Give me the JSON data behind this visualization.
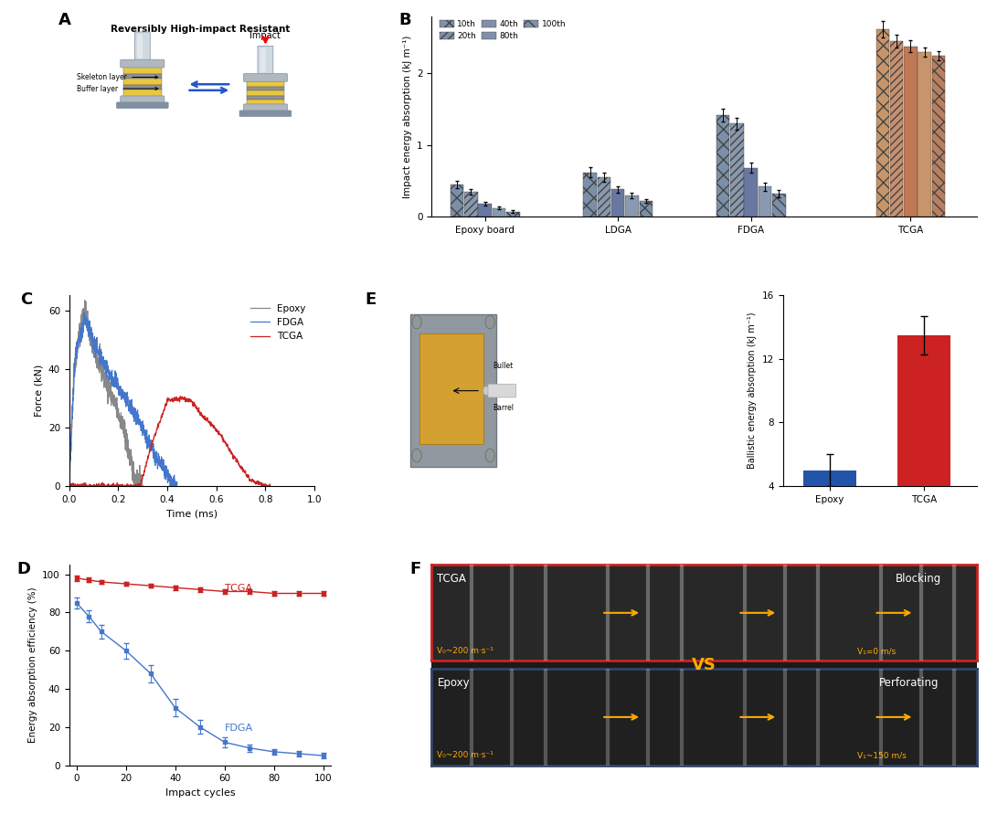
{
  "panel_B": {
    "groups": [
      "Epoxy board",
      "LDGA",
      "FDGA",
      "TCGA"
    ],
    "cycles": [
      "10th",
      "20th",
      "40th",
      "80th",
      "100th"
    ],
    "values": {
      "Epoxy board": [
        0.45,
        0.35,
        0.18,
        0.12,
        0.07
      ],
      "LDGA": [
        0.62,
        0.55,
        0.38,
        0.3,
        0.22
      ],
      "FDGA": [
        1.42,
        1.3,
        0.68,
        0.42,
        0.32
      ],
      "TCGA": [
        2.62,
        2.45,
        2.38,
        2.3,
        2.25
      ]
    },
    "errors": {
      "Epoxy board": [
        0.05,
        0.04,
        0.03,
        0.02,
        0.02
      ],
      "LDGA": [
        0.07,
        0.06,
        0.05,
        0.04,
        0.03
      ],
      "FDGA": [
        0.09,
        0.08,
        0.07,
        0.06,
        0.05
      ],
      "TCGA": [
        0.12,
        0.09,
        0.08,
        0.07,
        0.06
      ]
    },
    "ylabel": "Impact energy absorption (kJ m⁻¹)",
    "ylim": [
      0,
      2.8
    ],
    "yticks": [
      0,
      1,
      2
    ]
  },
  "panel_C": {
    "xlabel": "Time (ms)",
    "ylabel": "Force (kN)",
    "xlim": [
      0.0,
      1.0
    ],
    "ylim": [
      0,
      65
    ],
    "yticks": [
      0,
      20,
      40,
      60
    ],
    "xticks": [
      0.0,
      0.2,
      0.4,
      0.6,
      0.8,
      1.0
    ]
  },
  "panel_D": {
    "tcga_x": [
      0,
      5,
      10,
      20,
      30,
      40,
      50,
      60,
      70,
      80,
      90,
      100
    ],
    "tcga_y": [
      98,
      97,
      96,
      95,
      94,
      93,
      92,
      91,
      91,
      90,
      90,
      90
    ],
    "tcga_err": [
      1.5,
      1.2,
      1.0,
      1.0,
      1.0,
      1.2,
      1.2,
      1.0,
      1.0,
      1.0,
      1.2,
      1.2
    ],
    "fdga_x": [
      0,
      5,
      10,
      20,
      30,
      40,
      50,
      60,
      70,
      80,
      90,
      100
    ],
    "fdga_y": [
      85,
      78,
      70,
      60,
      48,
      30,
      20,
      12,
      9,
      7,
      6,
      5
    ],
    "fdga_err": [
      3.0,
      3.0,
      3.5,
      4.0,
      4.5,
      4.5,
      3.5,
      2.5,
      2.0,
      1.5,
      1.5,
      1.5
    ],
    "xlabel": "Impact cycles",
    "ylabel": "Energy absorption efficiency (%)",
    "xlim": [
      -3,
      103
    ],
    "ylim": [
      0,
      105
    ],
    "yticks": [
      0,
      20,
      40,
      60,
      80,
      100
    ],
    "xticks": [
      0,
      20,
      40,
      60,
      80,
      100
    ]
  },
  "panel_G": {
    "groups": [
      "Epoxy",
      "TCGA"
    ],
    "values": [
      5.0,
      13.5
    ],
    "errors": [
      1.0,
      1.2
    ],
    "colors": [
      "#2255aa",
      "#cc2222"
    ],
    "ylabel": "Ballistic energy absorption (kJ m⁻¹)",
    "ylim": [
      4,
      16
    ],
    "yticks": [
      4,
      8,
      12,
      16
    ]
  },
  "colors": {
    "epoxy_line": "#888888",
    "fdga_line": "#4477cc",
    "tcga_line": "#cc2222",
    "panel_A_bg": "#e8eef8",
    "bar_gray": "#7b8fa8",
    "bar_peach": "#c8956a"
  }
}
